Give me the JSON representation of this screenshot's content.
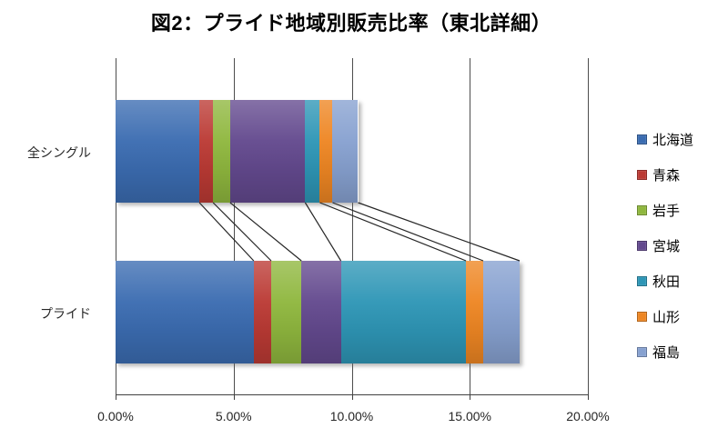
{
  "chart_data": {
    "type": "bar",
    "orientation": "horizontal-stacked",
    "title": "図2：プライド地域別販売比率（東北詳細）",
    "categories": [
      "全シングル",
      "プライド"
    ],
    "series": [
      {
        "name": "北海道",
        "color": "#3B6CB1",
        "values": [
          3.55,
          5.85
        ]
      },
      {
        "name": "青森",
        "color": "#BB3A34",
        "values": [
          0.58,
          0.74
        ]
      },
      {
        "name": "岩手",
        "color": "#8FB73E",
        "values": [
          0.72,
          1.28
        ]
      },
      {
        "name": "宮城",
        "color": "#63498E",
        "values": [
          3.18,
          1.67
        ]
      },
      {
        "name": "秋田",
        "color": "#2E96B6",
        "values": [
          0.62,
          5.3
        ]
      },
      {
        "name": "山形",
        "color": "#EE8623",
        "values": [
          0.54,
          0.73
        ]
      },
      {
        "name": "福島",
        "color": "#87A1D0",
        "values": [
          1.08,
          1.54
        ]
      }
    ],
    "x_axis": {
      "min": 0,
      "max": 20,
      "step": 5,
      "tick_labels": [
        "0.00%",
        "5.00%",
        "10.00%",
        "15.00%",
        "20.00%"
      ]
    },
    "legend_position": "right",
    "grid": true,
    "series_lines": true,
    "totals": [
      10.27,
      17.11
    ]
  }
}
